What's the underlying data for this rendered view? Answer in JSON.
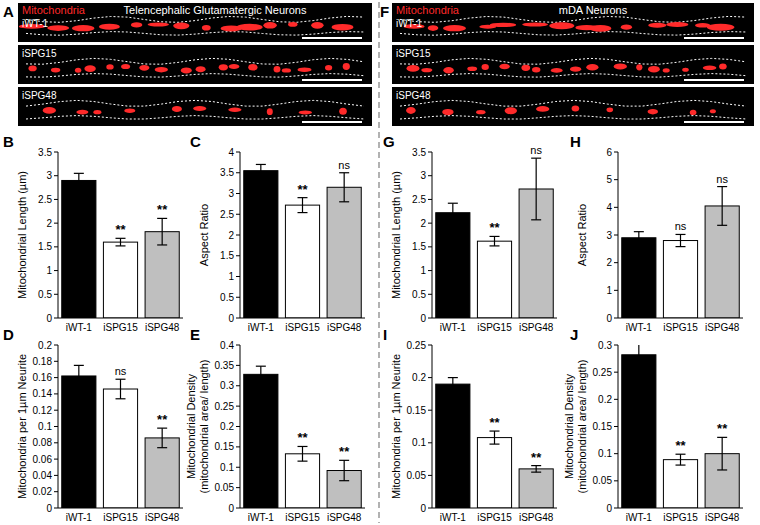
{
  "images": [
    {
      "panel_label": "A",
      "stain": "Mitochondria",
      "title": "Telencephalic Glutamatergic Neurons",
      "rows": [
        "iWT-1",
        "iSPG15",
        "iSPG48"
      ]
    },
    {
      "panel_label": "F",
      "stain": "Mitochondria",
      "title": "mDA Neurons",
      "rows": [
        "iWT-1",
        "iSPG15",
        "iSPG48"
      ]
    }
  ],
  "chart_data": [
    {
      "type": "bar",
      "panel_label": "B",
      "ylabel": "Mitochondrial Length (µm)",
      "categories": [
        "iWT-1",
        "iSPG15",
        "iSPG48"
      ],
      "values": [
        2.9,
        1.6,
        1.82
      ],
      "errors": [
        0.15,
        0.08,
        0.28
      ],
      "significance": [
        null,
        "**",
        "**"
      ],
      "colors": [
        "#000000",
        "#ffffff",
        "#bfbfbf"
      ],
      "ylim": [
        0,
        3.5
      ],
      "yticks": [
        0,
        0.5,
        1,
        1.5,
        2,
        2.5,
        3,
        3.5
      ],
      "grid": false
    },
    {
      "type": "bar",
      "panel_label": "C",
      "ylabel": "Aspect Ratio",
      "categories": [
        "iWT-1",
        "iSPG15",
        "iSPG48"
      ],
      "values": [
        3.55,
        2.72,
        3.15
      ],
      "errors": [
        0.15,
        0.18,
        0.35
      ],
      "significance": [
        null,
        "**",
        "ns"
      ],
      "colors": [
        "#000000",
        "#ffffff",
        "#bfbfbf"
      ],
      "ylim": [
        0,
        4
      ],
      "yticks": [
        0,
        0.5,
        1,
        1.5,
        2,
        2.5,
        3,
        3.5,
        4
      ],
      "grid": false
    },
    {
      "type": "bar",
      "panel_label": "D",
      "ylabel": "Mitochondria per 1µm Neurite",
      "categories": [
        "iWT-1",
        "iSPG15",
        "iSPG48"
      ],
      "values": [
        0.162,
        0.146,
        0.086
      ],
      "errors": [
        0.013,
        0.012,
        0.012
      ],
      "significance": [
        null,
        "ns",
        "**"
      ],
      "colors": [
        "#000000",
        "#ffffff",
        "#bfbfbf"
      ],
      "ylim": [
        0,
        0.2
      ],
      "yticks": [
        0,
        0.02,
        0.04,
        0.06,
        0.08,
        0.1,
        0.12,
        0.14,
        0.16,
        0.18,
        0.2
      ],
      "grid": false
    },
    {
      "type": "bar",
      "panel_label": "E",
      "ylabel": [
        "Mitochondrial Density",
        "(mitochondrial area/ length)"
      ],
      "categories": [
        "iWT-1",
        "iSPG15",
        "iSPG48"
      ],
      "values": [
        0.328,
        0.133,
        0.092
      ],
      "errors": [
        0.02,
        0.018,
        0.025
      ],
      "significance": [
        null,
        "**",
        "**"
      ],
      "colors": [
        "#000000",
        "#ffffff",
        "#bfbfbf"
      ],
      "ylim": [
        0,
        0.4
      ],
      "yticks": [
        0,
        0.05,
        0.1,
        0.15,
        0.2,
        0.25,
        0.3,
        0.35,
        0.4
      ],
      "grid": false
    },
    {
      "type": "bar",
      "panel_label": "G",
      "ylabel": "Mitochondrial Length (µm)",
      "categories": [
        "iWT-1",
        "iSPG15",
        "iSPG48"
      ],
      "values": [
        2.22,
        1.62,
        2.72
      ],
      "errors": [
        0.2,
        0.1,
        0.65
      ],
      "significance": [
        null,
        "**",
        "ns"
      ],
      "colors": [
        "#000000",
        "#ffffff",
        "#bfbfbf"
      ],
      "ylim": [
        0,
        3.5
      ],
      "yticks": [
        0,
        0.5,
        1,
        1.5,
        2,
        2.5,
        3,
        3.5
      ],
      "grid": false
    },
    {
      "type": "bar",
      "panel_label": "H",
      "ylabel": "Aspect Ratio",
      "categories": [
        "iWT-1",
        "iSPG15",
        "iSPG48"
      ],
      "values": [
        2.9,
        2.8,
        4.05
      ],
      "errors": [
        0.22,
        0.22,
        0.7
      ],
      "significance": [
        null,
        "ns",
        "ns"
      ],
      "colors": [
        "#000000",
        "#ffffff",
        "#bfbfbf"
      ],
      "ylim": [
        0,
        6
      ],
      "yticks": [
        0,
        1,
        2,
        3,
        4,
        5,
        6
      ],
      "grid": false
    },
    {
      "type": "bar",
      "panel_label": "I",
      "ylabel": "Mitochondria per 1µm Neurite",
      "categories": [
        "iWT-1",
        "iSPG15",
        "iSPG48"
      ],
      "values": [
        0.19,
        0.108,
        0.06
      ],
      "errors": [
        0.01,
        0.01,
        0.005
      ],
      "significance": [
        null,
        "**",
        "**"
      ],
      "colors": [
        "#000000",
        "#ffffff",
        "#bfbfbf"
      ],
      "ylim": [
        0,
        0.25
      ],
      "yticks": [
        0,
        0.05,
        0.1,
        0.15,
        0.2,
        0.25
      ],
      "grid": false
    },
    {
      "type": "bar",
      "panel_label": "J",
      "ylabel": [
        "Mitochondrial Density",
        "(mitochondrial area/ length)"
      ],
      "categories": [
        "iWT-1",
        "iSPG15",
        "iSPG48"
      ],
      "values": [
        0.282,
        0.089,
        0.1
      ],
      "errors": [
        0.022,
        0.01,
        0.03
      ],
      "significance": [
        null,
        "**",
        "**"
      ],
      "colors": [
        "#000000",
        "#ffffff",
        "#bfbfbf"
      ],
      "ylim": [
        0,
        0.3
      ],
      "yticks": [
        0,
        0.05,
        0.1,
        0.15,
        0.2,
        0.25,
        0.3
      ],
      "grid": false
    }
  ]
}
